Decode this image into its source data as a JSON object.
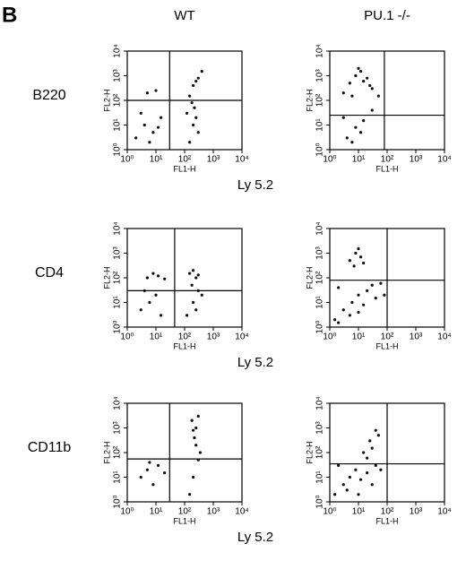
{
  "panel_label": "B",
  "columns": [
    "WT",
    "PU.1 -/-"
  ],
  "rows": [
    {
      "label": "B220",
      "xlabel": "Ly 5.2"
    },
    {
      "label": "CD4",
      "xlabel": "Ly 5.2"
    },
    {
      "label": "CD11b",
      "xlabel": "Ly 5.2"
    }
  ],
  "chart_data": [
    {
      "type": "scatter",
      "xlabel": "FL1-H",
      "ylabel": "FL2-H",
      "log": true,
      "color": "#111111",
      "xlim": [
        1,
        10000
      ],
      "ylim": [
        1,
        10000
      ],
      "xticks": [
        {
          "value": 1,
          "label": "10⁰"
        },
        {
          "value": 10,
          "label": "10¹"
        },
        {
          "value": 100,
          "label": "10²"
        },
        {
          "value": 1000,
          "label": "10³"
        },
        {
          "value": 10000,
          "label": "10⁴"
        }
      ],
      "yticks": [
        {
          "value": 1,
          "label": "10⁰"
        },
        {
          "value": 10,
          "label": "10¹"
        },
        {
          "value": 100,
          "label": "10²"
        },
        {
          "value": 1000,
          "label": "10³"
        },
        {
          "value": 10000,
          "label": "10⁴"
        }
      ],
      "gate_x": 30,
      "gate_y": 100,
      "x": [
        2,
        4,
        8,
        15,
        3,
        6,
        12,
        5,
        10,
        150,
        200,
        300,
        400,
        250,
        180,
        120,
        200,
        300,
        150,
        250,
        220
      ],
      "y": [
        3,
        10,
        5,
        20,
        30,
        2,
        8,
        200,
        250,
        150,
        400,
        800,
        1500,
        600,
        80,
        30,
        10,
        5,
        2,
        20,
        50
      ]
    },
    {
      "type": "scatter",
      "xlabel": "FL1-H",
      "ylabel": "FL2-H",
      "log": true,
      "color": "#111111",
      "xlim": [
        1,
        10000
      ],
      "ylim": [
        1,
        10000
      ],
      "xticks": [
        {
          "value": 1,
          "label": "10⁰"
        },
        {
          "value": 10,
          "label": "10¹"
        },
        {
          "value": 100,
          "label": "10²"
        },
        {
          "value": 1000,
          "label": "10³"
        },
        {
          "value": 10000,
          "label": "10⁴"
        }
      ],
      "yticks": [
        {
          "value": 1,
          "label": "10⁰"
        },
        {
          "value": 10,
          "label": "10¹"
        },
        {
          "value": 100,
          "label": "10²"
        },
        {
          "value": 1000,
          "label": "10³"
        },
        {
          "value": 10000,
          "label": "10⁴"
        }
      ],
      "gate_x": 80,
      "gate_y": 25,
      "x": [
        3,
        5,
        8,
        12,
        20,
        30,
        6,
        10,
        15,
        25,
        4,
        8,
        15,
        3,
        6,
        12,
        30,
        50
      ],
      "y": [
        200,
        500,
        1000,
        1500,
        800,
        300,
        150,
        2000,
        600,
        400,
        3,
        8,
        15,
        20,
        2,
        5,
        40,
        150
      ]
    },
    {
      "type": "scatter",
      "xlabel": "FL1-H",
      "ylabel": "FL2-H",
      "log": true,
      "color": "#111111",
      "xlim": [
        1,
        10000
      ],
      "ylim": [
        1,
        10000
      ],
      "xticks": [
        {
          "value": 1,
          "label": "10⁰"
        },
        {
          "value": 10,
          "label": "10¹"
        },
        {
          "value": 100,
          "label": "10²"
        },
        {
          "value": 1000,
          "label": "10³"
        },
        {
          "value": 10000,
          "label": "10⁴"
        }
      ],
      "yticks": [
        {
          "value": 1,
          "label": "10⁰"
        },
        {
          "value": 10,
          "label": "10¹"
        },
        {
          "value": 100,
          "label": "10²"
        },
        {
          "value": 1000,
          "label": "10³"
        },
        {
          "value": 10000,
          "label": "10⁴"
        }
      ],
      "gate_x": 45,
      "gate_y": 30,
      "x": [
        5,
        8,
        12,
        20,
        150,
        200,
        300,
        250,
        120,
        200,
        300,
        400,
        250,
        180,
        3,
        6,
        10,
        15,
        4
      ],
      "y": [
        100,
        150,
        120,
        90,
        150,
        200,
        130,
        100,
        3,
        10,
        30,
        20,
        5,
        50,
        5,
        10,
        20,
        3,
        30
      ]
    },
    {
      "type": "scatter",
      "xlabel": "FL1-H",
      "ylabel": "FL2-H",
      "log": true,
      "color": "#111111",
      "xlim": [
        1,
        10000
      ],
      "ylim": [
        1,
        10000
      ],
      "xticks": [
        {
          "value": 1,
          "label": "10⁰"
        },
        {
          "value": 10,
          "label": "10¹"
        },
        {
          "value": 100,
          "label": "10²"
        },
        {
          "value": 1000,
          "label": "10³"
        },
        {
          "value": 10000,
          "label": "10⁴"
        }
      ],
      "yticks": [
        {
          "value": 1,
          "label": "10⁰"
        },
        {
          "value": 10,
          "label": "10¹"
        },
        {
          "value": 100,
          "label": "10²"
        },
        {
          "value": 1000,
          "label": "10³"
        },
        {
          "value": 10000,
          "label": "10⁴"
        }
      ],
      "gate_x": 100,
      "gate_y": 80,
      "x": [
        5,
        8,
        12,
        15,
        10,
        7,
        1.5,
        3,
        6,
        10,
        20,
        40,
        2,
        5,
        15,
        30,
        60,
        80,
        2,
        10
      ],
      "y": [
        500,
        1000,
        700,
        400,
        1500,
        300,
        2,
        5,
        10,
        20,
        30,
        15,
        40,
        3,
        8,
        50,
        60,
        20,
        1.5,
        4
      ]
    },
    {
      "type": "scatter",
      "xlabel": "FL1-H",
      "ylabel": "FL2-H",
      "log": true,
      "color": "#111111",
      "xlim": [
        1,
        10000
      ],
      "ylim": [
        1,
        10000
      ],
      "xticks": [
        {
          "value": 1,
          "label": "10⁰"
        },
        {
          "value": 10,
          "label": "10¹"
        },
        {
          "value": 100,
          "label": "10²"
        },
        {
          "value": 1000,
          "label": "10³"
        },
        {
          "value": 10000,
          "label": "10⁴"
        }
      ],
      "yticks": [
        {
          "value": 1,
          "label": "10⁰"
        },
        {
          "value": 10,
          "label": "10¹"
        },
        {
          "value": 100,
          "label": "10²"
        },
        {
          "value": 1000,
          "label": "10³"
        },
        {
          "value": 10000,
          "label": "10⁴"
        }
      ],
      "gate_x": 30,
      "gate_y": 55,
      "x": [
        3,
        5,
        8,
        12,
        20,
        6,
        150,
        200,
        300,
        250,
        200,
        180,
        300,
        250,
        220,
        350
      ],
      "y": [
        10,
        20,
        5,
        30,
        15,
        40,
        2,
        10,
        50,
        200,
        800,
        2000,
        3000,
        1000,
        400,
        100
      ]
    },
    {
      "type": "scatter",
      "xlabel": "FL1-H",
      "ylabel": "FL2-H",
      "log": true,
      "color": "#111111",
      "xlim": [
        1,
        10000
      ],
      "ylim": [
        1,
        10000
      ],
      "xticks": [
        {
          "value": 1,
          "label": "10⁰"
        },
        {
          "value": 10,
          "label": "10¹"
        },
        {
          "value": 100,
          "label": "10²"
        },
        {
          "value": 1000,
          "label": "10³"
        },
        {
          "value": 10000,
          "label": "10⁴"
        }
      ],
      "yticks": [
        {
          "value": 1,
          "label": "10⁰"
        },
        {
          "value": 10,
          "label": "10¹"
        },
        {
          "value": 100,
          "label": "10²"
        },
        {
          "value": 1000,
          "label": "10³"
        },
        {
          "value": 10000,
          "label": "10⁴"
        }
      ],
      "gate_x": 100,
      "gate_y": 35,
      "x": [
        1.5,
        3,
        5,
        8,
        12,
        20,
        40,
        60,
        2,
        4,
        10,
        30,
        15,
        25,
        40,
        50,
        20,
        30
      ],
      "y": [
        2,
        5,
        10,
        20,
        8,
        15,
        30,
        20,
        30,
        3,
        2,
        5,
        100,
        300,
        800,
        500,
        60,
        150
      ]
    }
  ]
}
